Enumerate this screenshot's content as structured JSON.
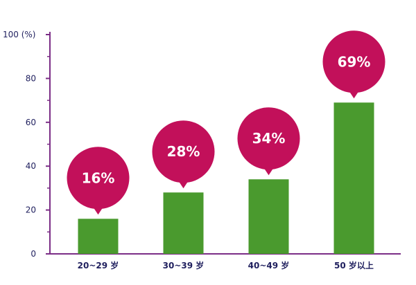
{
  "chart_data": {
    "type": "bar",
    "categories": [
      "20~29 岁",
      "30~39 岁",
      "40~49 岁",
      "50 岁以上"
    ],
    "values": [
      16,
      28,
      34,
      69
    ],
    "data_labels": [
      "16%",
      "28%",
      "34%",
      "69%"
    ],
    "y_ticks": [
      "0",
      "20",
      "40",
      "60",
      "80",
      "100 (%)"
    ],
    "y_tick_values": [
      0,
      20,
      40,
      60,
      80,
      100
    ],
    "ylim": [
      0,
      100
    ],
    "grid": false,
    "colors": {
      "bar": "#4a9a2e",
      "bubble": "#c2105a",
      "axis": "#7b2d86",
      "text": "#1f1f5e"
    }
  }
}
